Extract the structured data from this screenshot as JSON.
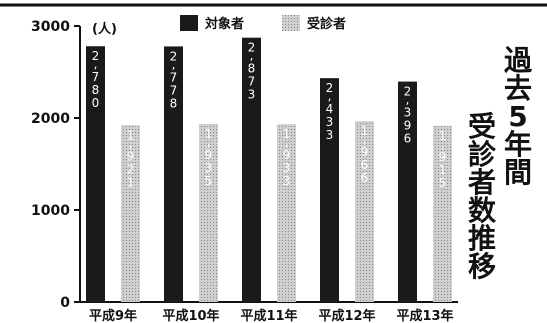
{
  "chart_data": {
    "type": "bar",
    "unit": "(人)",
    "categories": [
      "平成9年",
      "平成10年",
      "平成11年",
      "平成12年",
      "平成13年"
    ],
    "series": [
      {
        "name": "対象者",
        "values": [
          2780,
          2778,
          2873,
          2433,
          2396
        ],
        "labels": [
          "2,780",
          "2,778",
          "2,873",
          "2,433",
          "2,396"
        ],
        "color": "#1a1a1a"
      },
      {
        "name": "受診者",
        "values": [
          1921,
          1935,
          1933,
          1966,
          1915
        ],
        "labels": [
          "1,921",
          "1,935",
          "1,933",
          "1,966",
          "1,915"
        ],
        "color": "#c8c8c8"
      }
    ],
    "yticks": [
      "0",
      "1000",
      "2000",
      "3000"
    ],
    "ylim": [
      0,
      3000
    ],
    "title_lines": [
      "過去5年間",
      "受診者数推移"
    ],
    "legend_position": "top-center",
    "grid": false
  }
}
